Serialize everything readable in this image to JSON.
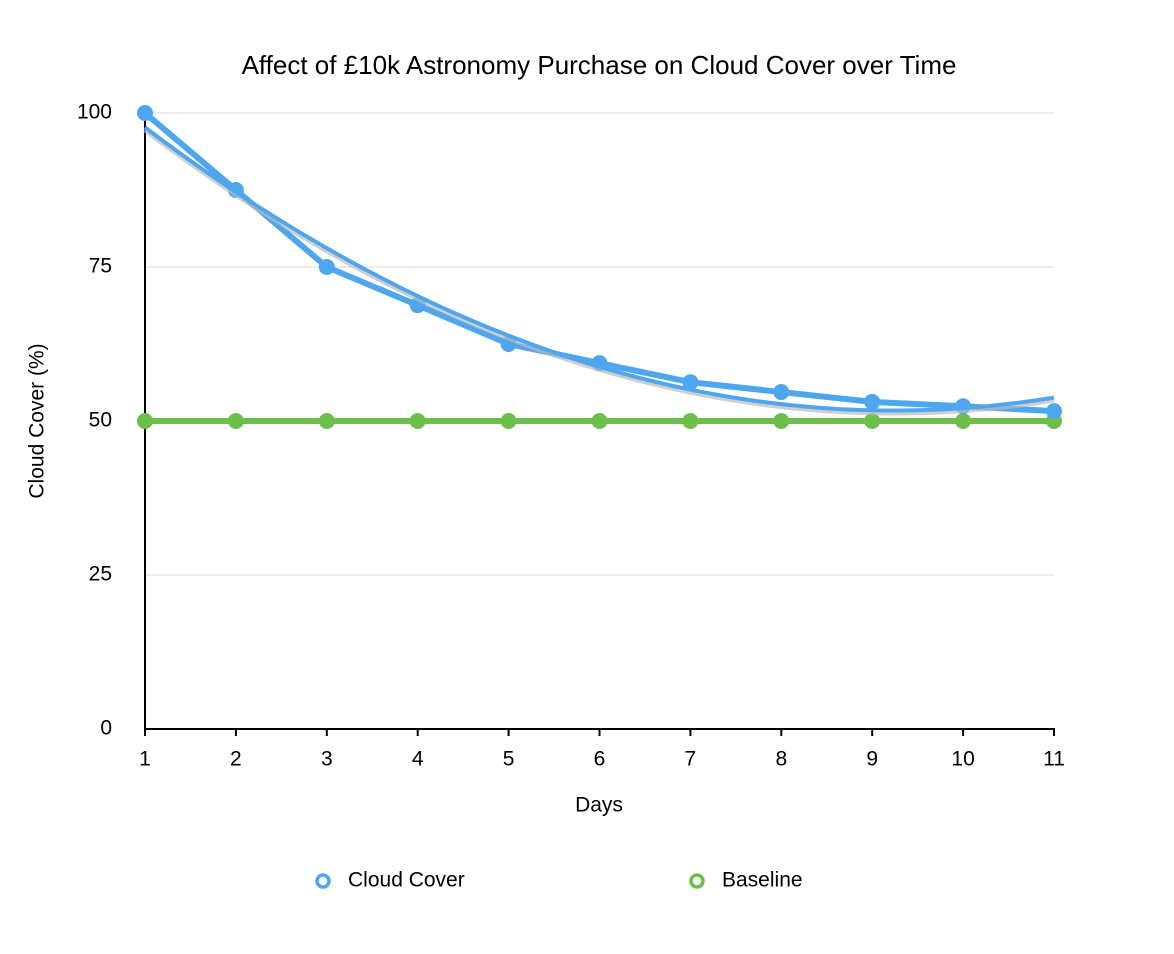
{
  "chart_data": {
    "type": "line",
    "title": "Affect of £10k Astronomy Purchase on Cloud Cover over Time",
    "x_label": "Days",
    "y_label": "Cloud Cover (%)",
    "x": [
      1,
      2,
      3,
      4,
      5,
      6,
      7,
      8,
      9,
      10,
      11
    ],
    "series": [
      {
        "name": "Cloud Cover",
        "color": "#4ea6ee",
        "values": [
          100,
          87.5,
          75,
          68.8,
          62.5,
          59.4,
          56.3,
          54.7,
          53.1,
          52.4,
          51.6
        ]
      },
      {
        "name": "Baseline",
        "color": "#6cc04a",
        "values": [
          50,
          50,
          50,
          50,
          50,
          50,
          50,
          50,
          50,
          50,
          50
        ]
      }
    ],
    "trendline": {
      "series": 0,
      "order": 2
    },
    "xlim": [
      1,
      11
    ],
    "xticks": [
      1,
      2,
      3,
      4,
      5,
      6,
      7,
      8,
      9,
      10,
      11
    ],
    "ylim": [
      0,
      100
    ],
    "yticks": [
      0,
      25,
      50,
      75,
      100
    ],
    "grid": true,
    "legend": "bottom"
  }
}
